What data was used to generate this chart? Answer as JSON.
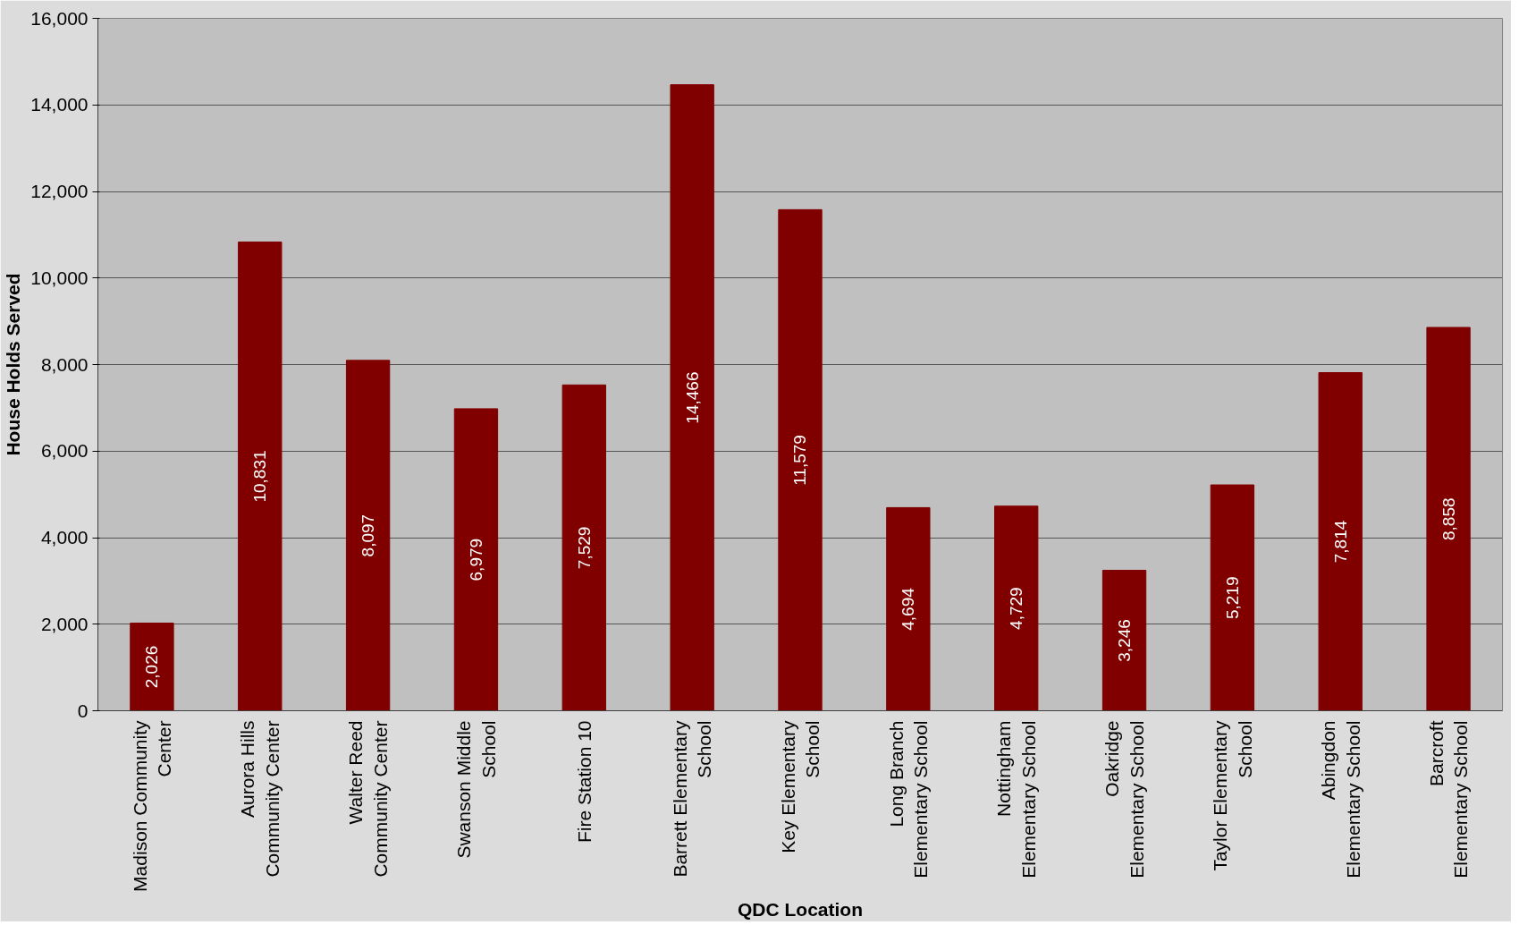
{
  "chart_data": {
    "type": "bar",
    "xlabel": "QDC Location",
    "ylabel": "House Holds Served",
    "categories": [
      "Madison Community Center",
      "Aurora Hills Community Center",
      "Walter Reed Community Center",
      "Swanson Middle School",
      "Fire Station 10",
      "Barrett Elementary School",
      "Key Elementary School",
      "Long Branch Elementary School",
      "Nottingham Elementary School",
      "Oakridge Elementary School",
      "Taylor Elementary School",
      "Abingdon Elementary School",
      "Barcroft Elementary School"
    ],
    "values": [
      2026,
      10831,
      8097,
      6979,
      7529,
      14466,
      11579,
      4694,
      4729,
      3246,
      5219,
      7814,
      8858
    ],
    "value_labels": [
      "2,026",
      "10,831",
      "8,097",
      "6,979",
      "7,529",
      "14,466",
      "11,579",
      "4,694",
      "4,729",
      "3,246",
      "5,219",
      "7,814",
      "8,858"
    ],
    "color": "#800000",
    "ylim": [
      0,
      16000
    ],
    "yticks": [
      0,
      {
        "value": 2000,
        "label": "2,000"
      },
      {
        "value": 4000,
        "label": "4,000"
      },
      {
        "value": 6000,
        "label": "6,000"
      },
      {
        "value": 8000,
        "label": "8,000"
      },
      {
        "value": 10000,
        "label": "10,000"
      },
      {
        "value": 12000,
        "label": "12,000"
      },
      {
        "value": 14000,
        "label": "14,000"
      },
      {
        "value": 16000,
        "label": "16,000"
      }
    ],
    "grid": "y"
  }
}
